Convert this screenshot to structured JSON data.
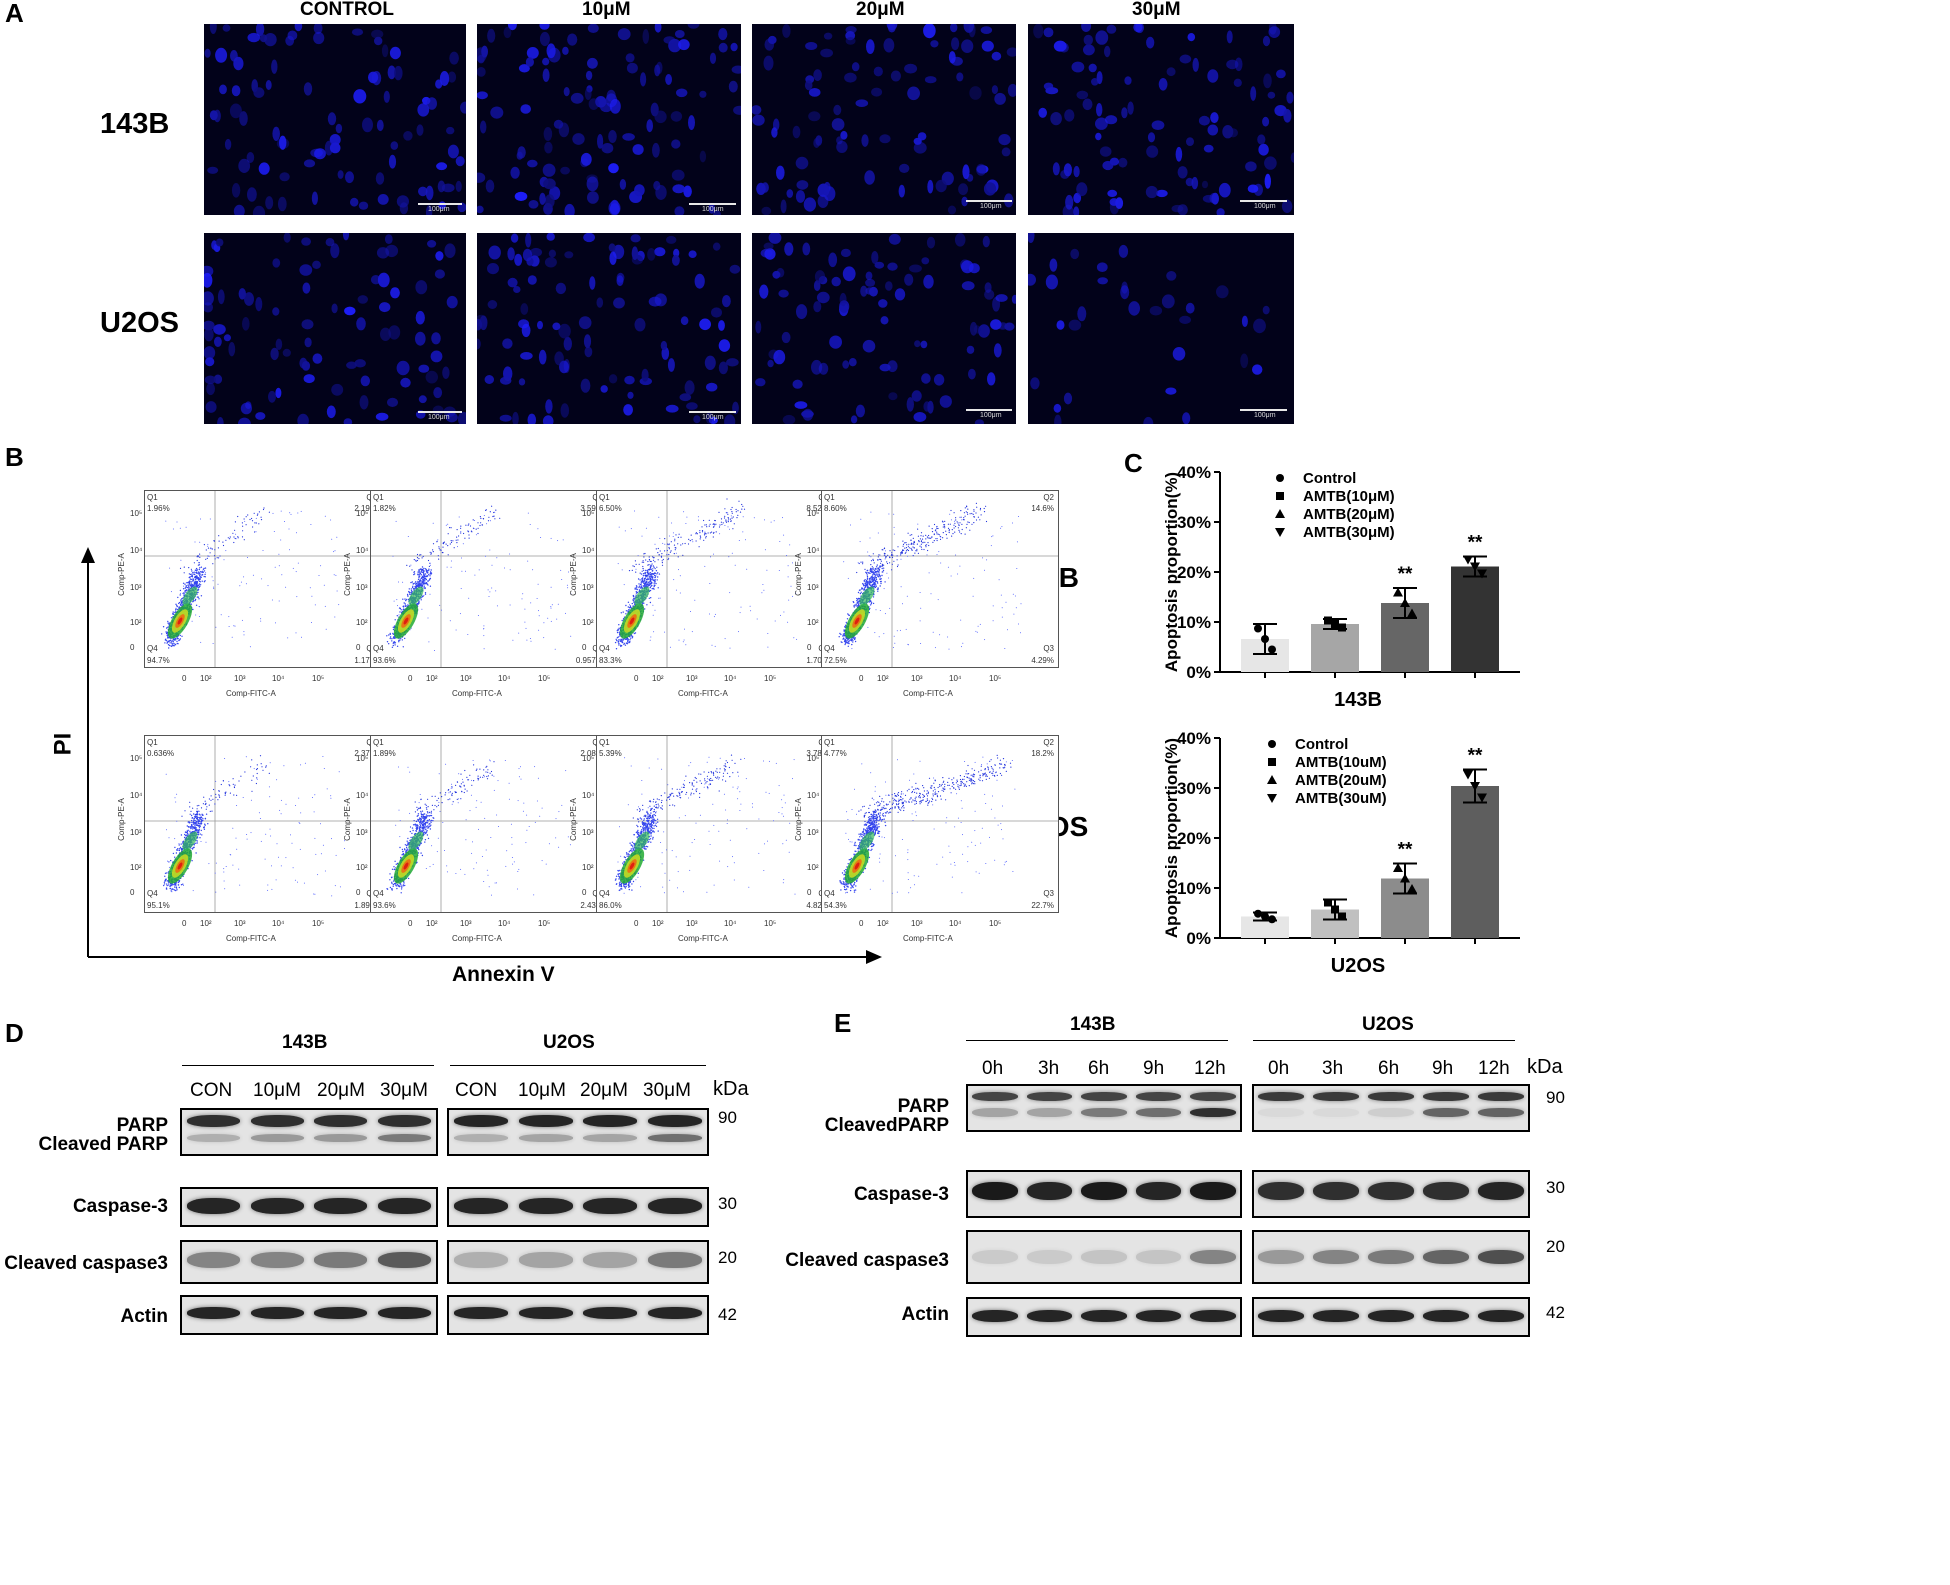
{
  "panel_labels": {
    "a": "A",
    "b": "B",
    "c": "C",
    "d": "D",
    "e": "E"
  },
  "panelA": {
    "columns": [
      "CONTROL",
      "10μM",
      "20μM",
      "30μM"
    ],
    "rows": [
      "143B",
      "U2OS"
    ],
    "scale_label": "100μm"
  },
  "panelB": {
    "y_axis": "PI",
    "x_axis": "Annexin V",
    "row_labels": [
      "143B",
      "U2OS"
    ],
    "plot_x_label": "Comp-FITC-A",
    "plot_y_label": "Comp-PE-A",
    "tick_labels": [
      "0",
      "10²",
      "10³",
      "10⁴",
      "10⁵"
    ],
    "quadrant_names": [
      "Q1",
      "Q2",
      "Q3",
      "Q4"
    ],
    "plots": [
      {
        "q1": "1.96%",
        "q2": "2.19%",
        "q3": "1.17%",
        "q4": "94.7%"
      },
      {
        "q1": "1.82%",
        "q2": "3.59%",
        "q3": "0.957%",
        "q4": "93.6%"
      },
      {
        "q1": "6.50%",
        "q2": "8.52%",
        "q3": "1.70%",
        "q4": "83.3%"
      },
      {
        "q1": "8.60%",
        "q2": "14.6%",
        "q3": "4.29%",
        "q4": "72.5%"
      },
      {
        "q1": "0.636%",
        "q2": "2.37%",
        "q3": "1.89%",
        "q4": "95.1%"
      },
      {
        "q1": "1.89%",
        "q2": "2.08%",
        "q3": "2.43%",
        "q4": "93.6%"
      },
      {
        "q1": "5.39%",
        "q2": "3.78%",
        "q3": "4.82%",
        "q4": "86.0%"
      },
      {
        "q1": "4.77%",
        "q2": "18.2%",
        "q3": "22.7%",
        "q4": "54.3%"
      }
    ]
  },
  "chart_data": [
    {
      "type": "bar",
      "title": "143B",
      "ylabel": "Apoptosis proportion(%)",
      "ylim": [
        0,
        40
      ],
      "yticks": [
        "0%",
        "10%",
        "20%",
        "30%",
        "40%"
      ],
      "categories": [
        "Control",
        "AMTB(10μM)",
        "AMTB(20μM)",
        "AMTB(30μM)"
      ],
      "values": [
        6.6,
        9.6,
        13.8,
        21.1
      ],
      "errors": [
        3.0,
        1.0,
        3.0,
        2.0
      ],
      "significance": [
        "",
        "",
        "**",
        "**"
      ],
      "colors": [
        "#e6e6e6",
        "#a6a6a6",
        "#666666",
        "#333333"
      ],
      "legend_position": "top-left"
    },
    {
      "type": "bar",
      "title": "U2OS",
      "ylabel": "Apoptosis proportion(%)",
      "ylim": [
        0,
        40
      ],
      "yticks": [
        "0%",
        "10%",
        "20%",
        "30%",
        "40%"
      ],
      "categories": [
        "Control",
        "AMTB(10uM)",
        "AMTB(20uM)",
        "AMTB(30uM)"
      ],
      "values": [
        4.3,
        5.7,
        11.9,
        30.4
      ],
      "errors": [
        0.8,
        2.0,
        3.0,
        3.3
      ],
      "significance": [
        "",
        "",
        "**",
        "**"
      ],
      "colors": [
        "#e6e6e6",
        "#c0c0c0",
        "#8c8c8c",
        "#5e5e5e"
      ],
      "legend_position": "top-left"
    }
  ],
  "panelD": {
    "groups": [
      "143B",
      "U2OS"
    ],
    "lanes": [
      "CON",
      "10μM",
      "20μM",
      "30μM"
    ],
    "kda": "kDa",
    "rows": [
      "PARP",
      "Cleaved PARP",
      "Caspase-3",
      "Cleaved caspase3",
      "Actin"
    ],
    "mw": [
      "90",
      "30",
      "20",
      "42"
    ]
  },
  "panelE": {
    "groups": [
      "143B",
      "U2OS"
    ],
    "lanes": [
      "0h",
      "3h",
      "6h",
      "9h",
      "12h"
    ],
    "kda": "kDa",
    "rows": [
      "PARP",
      "CleavedPARP",
      "Caspase-3",
      "Cleaved caspase3",
      "Actin"
    ],
    "mw": [
      "90",
      "30",
      "20",
      "42"
    ]
  }
}
